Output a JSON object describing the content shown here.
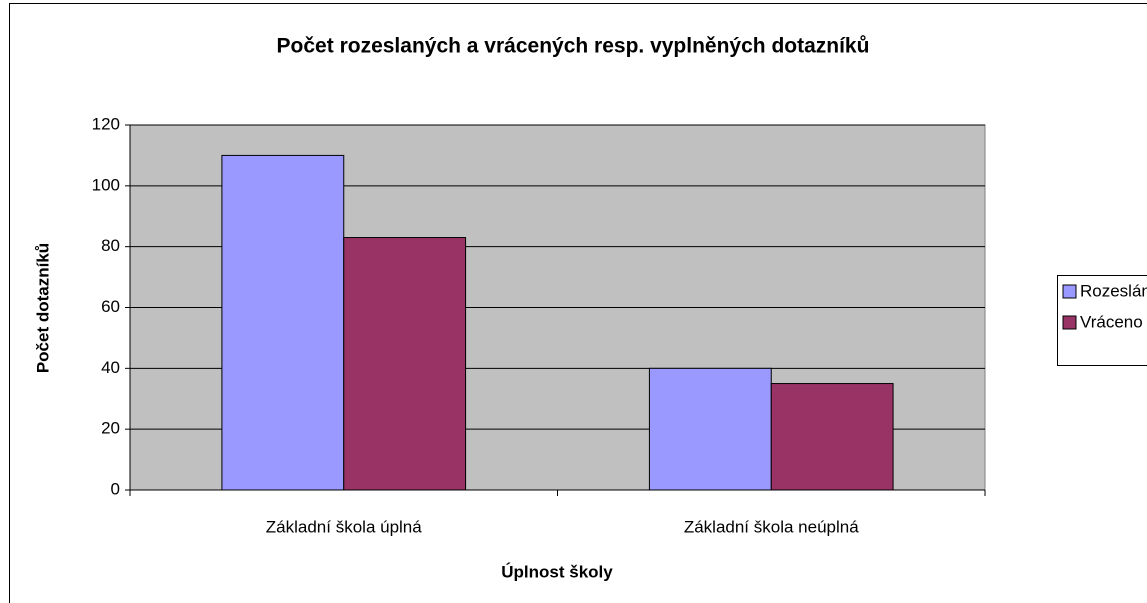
{
  "chart_data": {
    "type": "bar",
    "title": "Počet rozeslaných a vrácených resp. vyplněných dotazníků",
    "x_label": "Úplnost školy",
    "y_label": "Počet dotazníků",
    "categories": [
      "Základní škola úplná",
      "Základní škola neúplná"
    ],
    "series": [
      {
        "name": "Rozesláno",
        "color": "#9999ff",
        "values": [
          110,
          40
        ]
      },
      {
        "name": "Vráceno",
        "color": "#993366",
        "values": [
          83,
          35
        ]
      }
    ],
    "ylim": [
      0,
      120
    ],
    "yticks": [
      0,
      20,
      40,
      60,
      80,
      100,
      120
    ],
    "grid": true,
    "legend": "right",
    "plot_background": "#c0c0c0"
  }
}
